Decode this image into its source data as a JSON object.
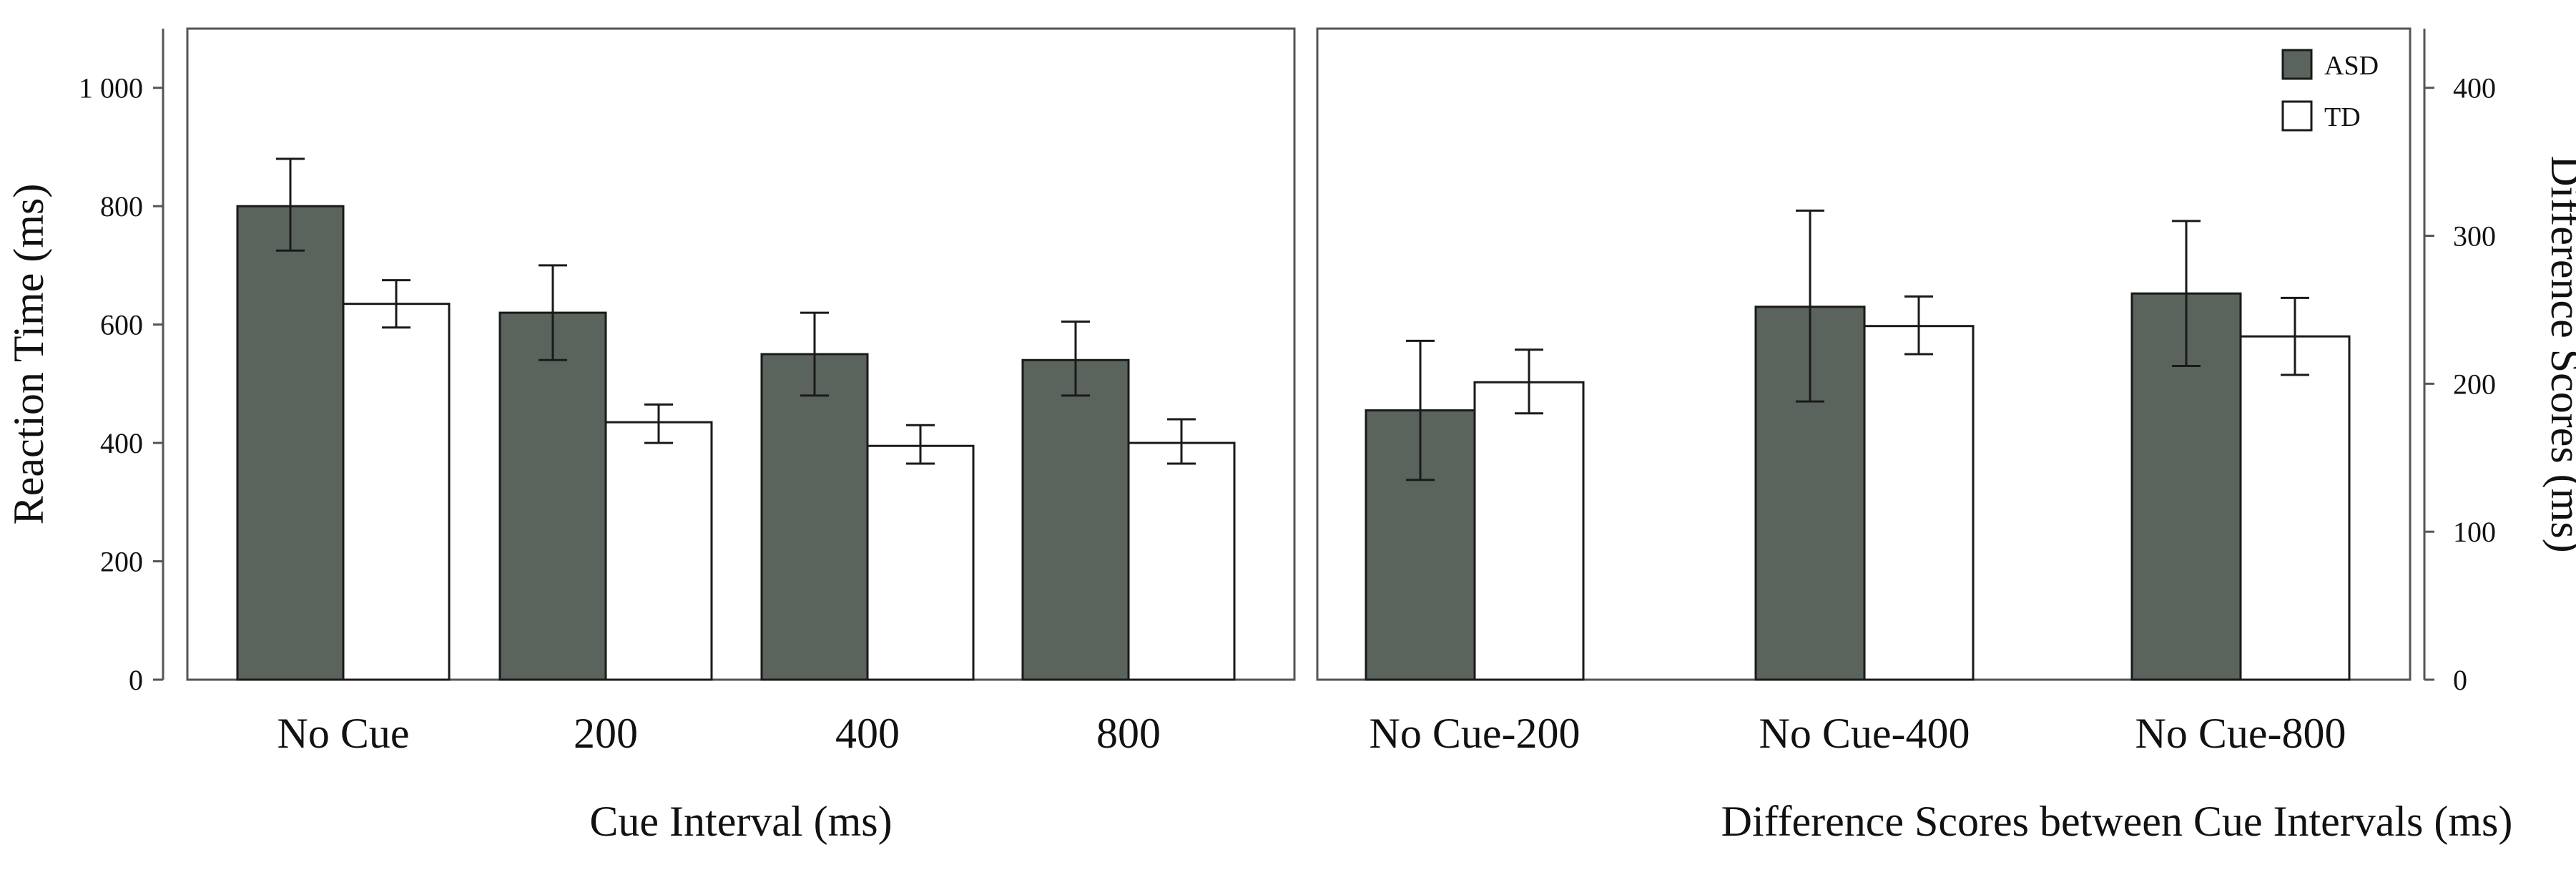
{
  "colors": {
    "asd": "#5a635c",
    "td": "#ffffff",
    "stroke": "#1a1a1a",
    "frame": "#555555"
  },
  "legend": [
    {
      "name": "ASD",
      "color": "#5a635c"
    },
    {
      "name": "TD",
      "color": "#ffffff"
    }
  ],
  "chart_data": [
    {
      "type": "bar",
      "categories": [
        "No Cue",
        "200",
        "400",
        "800"
      ],
      "series": [
        {
          "name": "ASD",
          "values": [
            800,
            620,
            550,
            540
          ],
          "err_low": [
            725,
            540,
            480,
            480
          ],
          "err_high": [
            880,
            700,
            620,
            605
          ]
        },
        {
          "name": "TD",
          "values": [
            635,
            435,
            395,
            400
          ],
          "err_low": [
            595,
            400,
            365,
            365
          ],
          "err_high": [
            675,
            465,
            430,
            440
          ]
        }
      ],
      "xlabel": "Cue Interval (ms)",
      "ylabel": "Reaction Time (ms)",
      "ylim": [
        0,
        1100
      ],
      "yticks": [
        0,
        200,
        400,
        600,
        800,
        1000
      ],
      "ytick_labels": [
        "0",
        "200",
        "400",
        "600",
        "800",
        "1 000"
      ],
      "y_axis_side": "left"
    },
    {
      "type": "bar",
      "categories": [
        "No Cue-200",
        "No Cue-400",
        "No Cue-800"
      ],
      "series": [
        {
          "name": "ASD",
          "values": [
            182,
            252,
            261
          ],
          "err_low": [
            135,
            188,
            212
          ],
          "err_high": [
            229,
            317,
            310
          ]
        },
        {
          "name": "TD",
          "values": [
            201,
            239,
            232
          ],
          "err_low": [
            180,
            220,
            206
          ],
          "err_high": [
            223,
            259,
            258
          ]
        }
      ],
      "xlabel": "Difference Scores between Cue Intervals (ms)",
      "ylabel": "Difference Scores (ms)",
      "ylim": [
        0,
        440
      ],
      "yticks": [
        0,
        100,
        200,
        300,
        400
      ],
      "ytick_labels": [
        "0",
        "100",
        "200",
        "300",
        "400"
      ],
      "y_axis_side": "right"
    }
  ]
}
